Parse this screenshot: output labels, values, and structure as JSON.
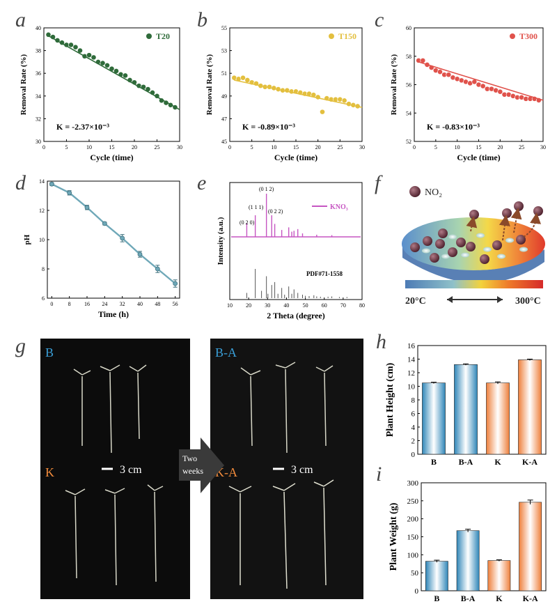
{
  "panel_letters": [
    "a",
    "b",
    "c",
    "d",
    "e",
    "f",
    "g",
    "h",
    "i"
  ],
  "chart_data": [
    {
      "id": "a",
      "type": "scatter",
      "xlabel": "Cycle (time)",
      "ylabel": "Removal Rate (%)",
      "xlim": [
        0,
        30
      ],
      "ylim": [
        30,
        40
      ],
      "xticks": [
        0,
        5,
        10,
        15,
        20,
        25,
        30
      ],
      "yticks": [
        30,
        32,
        34,
        36,
        38,
        40
      ],
      "color": "#2f6b3a",
      "legend": "T20",
      "k_label": "K = -2.37×10⁻³",
      "fit": [
        [
          1,
          39.3
        ],
        [
          30,
          32.8
        ]
      ],
      "series": [
        {
          "name": "T20",
          "x": [
            1,
            2,
            3,
            4,
            5,
            6,
            7,
            8,
            9,
            10,
            11,
            12,
            13,
            14,
            15,
            16,
            17,
            18,
            19,
            20,
            21,
            22,
            23,
            24,
            25,
            26,
            27,
            28,
            29
          ],
          "y": [
            39.4,
            39.2,
            38.9,
            38.7,
            38.5,
            38.5,
            38.3,
            38.0,
            37.5,
            37.6,
            37.4,
            37.0,
            36.9,
            36.7,
            36.4,
            36.2,
            35.9,
            35.8,
            35.4,
            35.2,
            34.9,
            34.8,
            34.6,
            34.3,
            34.0,
            33.6,
            33.4,
            33.2,
            33.0
          ]
        }
      ]
    },
    {
      "id": "b",
      "type": "scatter",
      "xlabel": "Cycle (time)",
      "ylabel": "Removal Rate (%)",
      "xlim": [
        0,
        30
      ],
      "ylim": [
        45,
        55
      ],
      "xticks": [
        0,
        5,
        10,
        15,
        20,
        25,
        30
      ],
      "yticks": [
        45,
        47,
        49,
        51,
        53,
        55
      ],
      "color": "#e3bf3e",
      "legend": "T150",
      "k_label": "K = -0.89×10⁻³",
      "fit": [
        [
          1,
          50.4
        ],
        [
          30,
          48.0
        ]
      ],
      "series": [
        {
          "name": "T150",
          "x": [
            1,
            2,
            3,
            4,
            5,
            6,
            7,
            8,
            9,
            10,
            11,
            12,
            13,
            14,
            15,
            16,
            17,
            18,
            19,
            20,
            21,
            22,
            23,
            24,
            25,
            26,
            27,
            28,
            29
          ],
          "y": [
            50.6,
            50.5,
            50.6,
            50.4,
            50.2,
            50.1,
            49.9,
            49.8,
            49.8,
            49.7,
            49.6,
            49.5,
            49.5,
            49.4,
            49.4,
            49.3,
            49.2,
            49.2,
            49.1,
            48.9,
            47.6,
            48.8,
            48.7,
            48.7,
            48.7,
            48.6,
            48.3,
            48.2,
            48.1
          ]
        }
      ]
    },
    {
      "id": "c",
      "type": "scatter",
      "xlabel": "Cycle (time)",
      "ylabel": "Removal Rate (%)",
      "xlim": [
        0,
        30
      ],
      "ylim": [
        52,
        60
      ],
      "xticks": [
        0,
        5,
        10,
        15,
        20,
        25,
        30
      ],
      "yticks": [
        52,
        54,
        56,
        58,
        60
      ],
      "color": "#e0524b",
      "legend": "T300",
      "k_label": "K = -0.83×10⁻³",
      "fit": [
        [
          1,
          57.6
        ],
        [
          30,
          54.9
        ]
      ],
      "series": [
        {
          "name": "T300",
          "x": [
            1,
            2,
            3,
            4,
            5,
            6,
            7,
            8,
            9,
            10,
            11,
            12,
            13,
            14,
            15,
            16,
            17,
            18,
            19,
            20,
            21,
            22,
            23,
            24,
            25,
            26,
            27,
            28,
            29
          ],
          "y": [
            57.7,
            57.7,
            57.4,
            57.2,
            57.0,
            56.9,
            56.7,
            56.7,
            56.5,
            56.4,
            56.3,
            56.2,
            56.1,
            56.2,
            56.0,
            55.9,
            55.7,
            55.7,
            55.6,
            55.5,
            55.3,
            55.3,
            55.2,
            55.1,
            55.1,
            55.0,
            55.0,
            55.0,
            54.9
          ]
        }
      ]
    },
    {
      "id": "d",
      "type": "line",
      "xlabel": "Time (h)",
      "ylabel": "pH",
      "xlim": [
        -2,
        58
      ],
      "ylim": [
        6,
        14
      ],
      "xticks": [
        0,
        8,
        16,
        24,
        32,
        40,
        48,
        56
      ],
      "yticks": [
        6,
        8,
        10,
        12,
        14
      ],
      "color": "#6fa8b8",
      "series": [
        {
          "name": "pH",
          "x": [
            0,
            8,
            16,
            24,
            32,
            40,
            48,
            56
          ],
          "y": [
            13.8,
            13.2,
            12.2,
            11.1,
            10.1,
            9.0,
            8.0,
            7.0
          ],
          "err": [
            0.1,
            0.15,
            0.15,
            0.1,
            0.25,
            0.2,
            0.25,
            0.25
          ]
        }
      ]
    },
    {
      "id": "e",
      "type": "line",
      "xlabel": "2 Theta (degree)",
      "ylabel": "Intensity (a.u.)",
      "xlim": [
        10,
        80
      ],
      "xticks": [
        10,
        20,
        30,
        40,
        50,
        60,
        70,
        80
      ],
      "legend": "KNO₃",
      "reference_label": "PDF#71-1558",
      "peak_labels": [
        "(0 2 0)",
        "(1 1 1)",
        "(0 1 2)",
        "(0 2 2)"
      ],
      "series": [
        {
          "name": "KNO₃",
          "color": "#c655c2",
          "x": [
            19.0,
            23.5,
            29.4,
            32.2,
            33.8,
            37.5,
            41.2,
            42.8,
            44.0,
            46.0,
            48.5,
            56.0,
            64.0
          ],
          "y": [
            0.32,
            0.5,
            1.0,
            0.5,
            0.3,
            0.16,
            0.22,
            0.12,
            0.14,
            0.18,
            0.08,
            0.05,
            0.04
          ]
        },
        {
          "name": "PDF#71-1558",
          "color": "#555555",
          "x": [
            19.0,
            23.5,
            26.8,
            29.4,
            30.2,
            32.2,
            33.8,
            35.5,
            37.5,
            39.0,
            41.2,
            42.8,
            44.0,
            46.0,
            48.5,
            50.0,
            52.0,
            54.5,
            56.0,
            58.0,
            62.0,
            64.0,
            68.0,
            72.0
          ],
          "y": [
            0.18,
            1.0,
            0.25,
            0.75,
            0.15,
            0.45,
            0.55,
            0.15,
            0.35,
            0.12,
            0.4,
            0.15,
            0.3,
            0.18,
            0.12,
            0.08,
            0.07,
            0.1,
            0.06,
            0.05,
            0.05,
            0.06,
            0.04,
            0.04
          ]
        }
      ]
    },
    {
      "id": "h",
      "type": "bar",
      "categories": [
        "B",
        "B-A",
        "K",
        "K-A"
      ],
      "ylabel": "Plant Height (cm)",
      "ylim": [
        0,
        16
      ],
      "yticks": [
        0,
        2,
        4,
        6,
        8,
        10,
        12,
        14,
        16
      ],
      "values": [
        10.5,
        13.2,
        10.5,
        13.9
      ],
      "err": [
        0.1,
        0.1,
        0.15,
        0.1
      ],
      "colors": [
        "#4a9cc9",
        "#4a9cc9",
        "#f08a4b",
        "#f08a4b"
      ]
    },
    {
      "id": "i",
      "type": "bar",
      "categories": [
        "B",
        "B-A",
        "K",
        "K-A"
      ],
      "ylabel": "Plant Weight (g)",
      "ylim": [
        0,
        300
      ],
      "yticks": [
        0,
        50,
        100,
        150,
        200,
        250,
        300
      ],
      "values": [
        82,
        167,
        84,
        246
      ],
      "err": [
        3,
        4,
        2,
        6
      ],
      "colors": [
        "#4a9cc9",
        "#4a9cc9",
        "#f08a4b",
        "#f08a4b"
      ]
    }
  ],
  "panel_f": {
    "molecule_label": "NO₂",
    "temp_low": "20°C",
    "temp_high": "300°C"
  },
  "panel_g": {
    "labels": [
      "B",
      "B-A",
      "K",
      "K-A"
    ],
    "scale_label": "3 cm",
    "arrow_text_line1": "Two",
    "arrow_text_line2": "weeks"
  }
}
